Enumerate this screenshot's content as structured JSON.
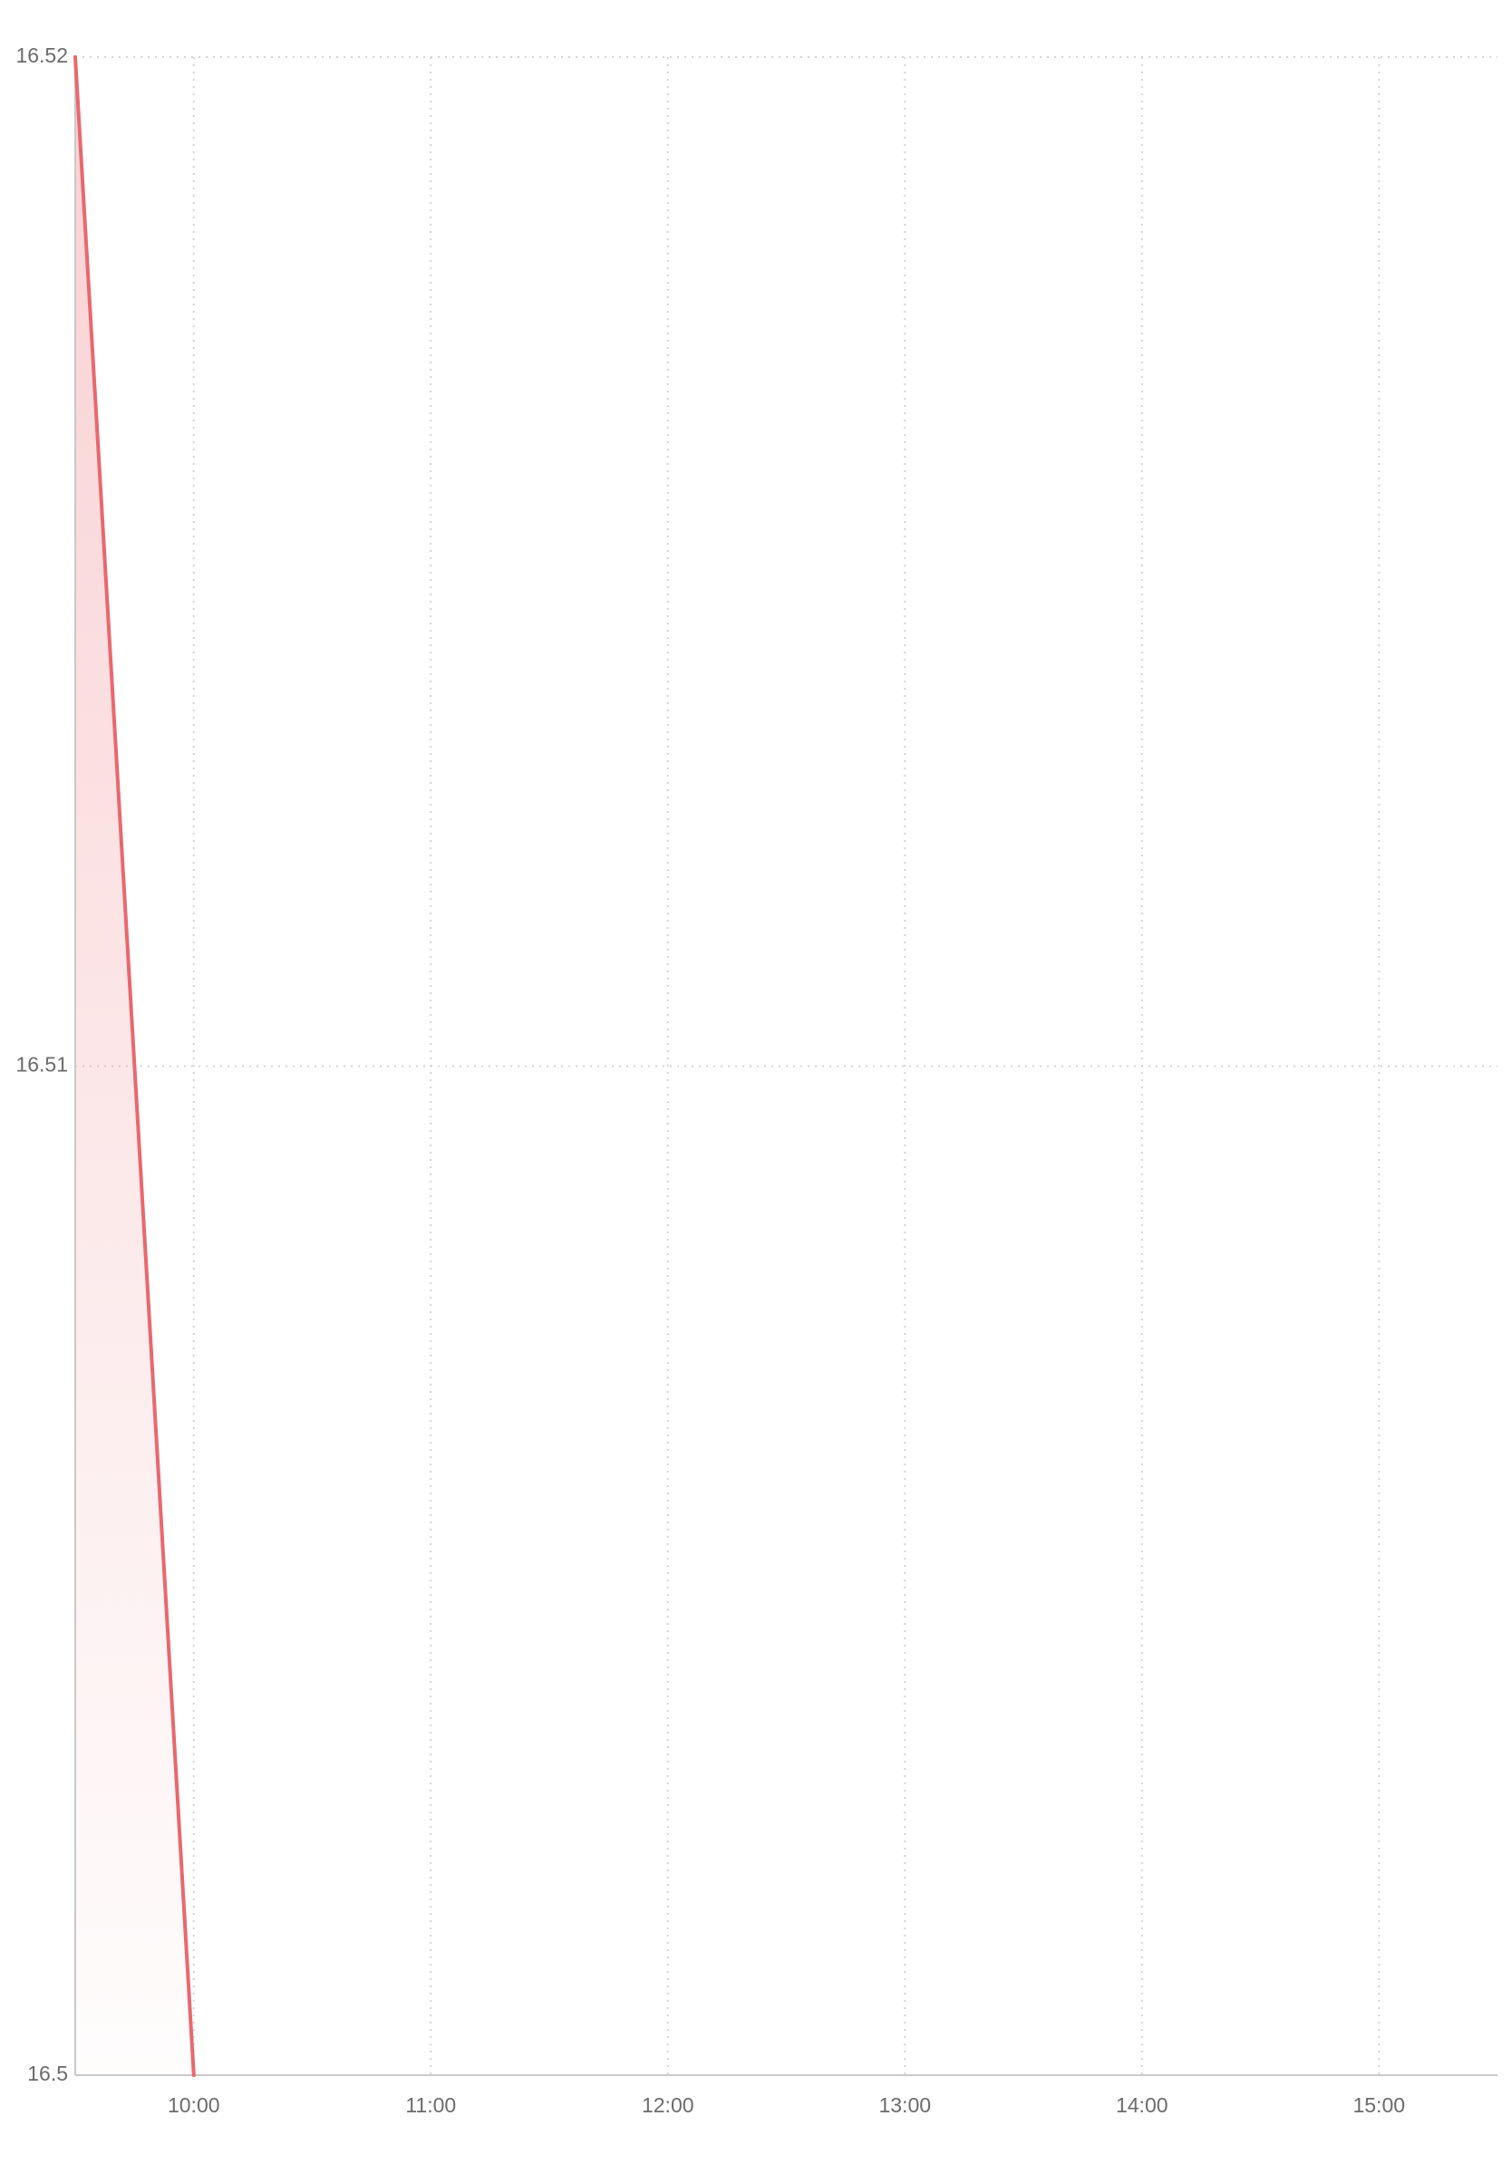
{
  "chart_data": {
    "type": "area",
    "title": "",
    "xlabel": "",
    "ylabel": "",
    "x_ticks": [
      "10:00",
      "11:00",
      "12:00",
      "13:00",
      "14:00",
      "15:00"
    ],
    "y_ticks": [
      "16.5",
      "16.51",
      "16.52"
    ],
    "xlim": [
      "09:30",
      "15:30"
    ],
    "ylim": [
      16.5,
      16.52
    ],
    "grid": true,
    "legend": "none",
    "series": [
      {
        "x": [
          "09:30",
          "10:00"
        ],
        "values": [
          16.52,
          16.5
        ]
      }
    ],
    "colors": {
      "line": "#e8686e",
      "fill": "#f3a3a7",
      "grid": "#d5d5d5",
      "axis": "#c9c9c9",
      "tick_text": "#6b6b6b"
    }
  }
}
